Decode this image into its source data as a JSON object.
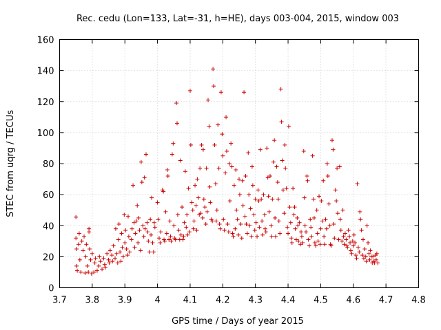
{
  "chart_data": {
    "type": "scatter",
    "title": "Rec. cedu (Lon=133, Lat=-31, h=HE), days 003-004, 2015, window 003",
    "xlabel": "GPS time / Days of year 2015",
    "ylabel": "STEC from uqrg / TECUs",
    "xlim": [
      3.7,
      4.8
    ],
    "ylim": [
      0,
      160
    ],
    "xticks": [
      "3.7",
      "3.8",
      "3.9",
      "4",
      "4.1",
      "4.2",
      "4.3",
      "4.4",
      "4.5",
      "4.6",
      "4.7",
      "4.8"
    ],
    "yticks": [
      "0",
      "20",
      "40",
      "60",
      "80",
      "100",
      "120",
      "140",
      "160"
    ],
    "grid": true,
    "marker": "+",
    "color": "#cc0000",
    "points": [
      [
        3.75,
        45.5
      ],
      [
        3.75,
        32
      ],
      [
        3.752,
        25
      ],
      [
        3.752,
        14
      ],
      [
        3.754,
        11
      ],
      [
        3.758,
        28
      ],
      [
        3.76,
        35
      ],
      [
        3.762,
        18
      ],
      [
        3.765,
        10
      ],
      [
        3.768,
        30
      ],
      [
        3.772,
        24
      ],
      [
        3.775,
        33
      ],
      [
        3.778,
        9.5
      ],
      [
        3.78,
        20
      ],
      [
        3.782,
        28
      ],
      [
        3.785,
        14
      ],
      [
        3.788,
        10
      ],
      [
        3.79,
        36
      ],
      [
        3.79,
        38
      ],
      [
        3.792,
        25
      ],
      [
        3.795,
        18
      ],
      [
        3.798,
        9
      ],
      [
        3.8,
        22
      ],
      [
        3.805,
        10
      ],
      [
        3.808,
        16
      ],
      [
        3.81,
        19
      ],
      [
        3.815,
        11
      ],
      [
        3.82,
        14
      ],
      [
        3.822,
        20
      ],
      [
        3.825,
        17
      ],
      [
        3.83,
        12
      ],
      [
        3.835,
        19
      ],
      [
        3.838,
        15
      ],
      [
        3.84,
        13
      ],
      [
        3.845,
        22
      ],
      [
        3.85,
        18
      ],
      [
        3.852,
        16
      ],
      [
        3.855,
        24
      ],
      [
        3.86,
        21
      ],
      [
        3.862,
        17
      ],
      [
        3.865,
        27
      ],
      [
        3.87,
        19
      ],
      [
        3.872,
        38
      ],
      [
        3.875,
        22
      ],
      [
        3.878,
        16
      ],
      [
        3.88,
        31
      ],
      [
        3.882,
        41
      ],
      [
        3.885,
        23
      ],
      [
        3.888,
        17
      ],
      [
        3.89,
        35
      ],
      [
        3.892,
        26
      ],
      [
        3.895,
        20
      ],
      [
        3.898,
        47
      ],
      [
        3.9,
        29
      ],
      [
        3.902,
        37
      ],
      [
        3.905,
        25
      ],
      [
        3.908,
        21
      ],
      [
        3.91,
        46
      ],
      [
        3.912,
        33
      ],
      [
        3.915,
        23
      ],
      [
        3.92,
        31
      ],
      [
        3.922,
        38
      ],
      [
        3.925,
        66
      ],
      [
        3.928,
        42
      ],
      [
        3.93,
        26
      ],
      [
        3.932,
        35
      ],
      [
        3.935,
        43
      ],
      [
        3.938,
        53
      ],
      [
        3.94,
        29
      ],
      [
        3.942,
        45
      ],
      [
        3.945,
        37
      ],
      [
        3.948,
        24
      ],
      [
        3.95,
        81
      ],
      [
        3.952,
        68
      ],
      [
        3.955,
        40
      ],
      [
        3.958,
        33
      ],
      [
        3.96,
        71
      ],
      [
        3.962,
        38
      ],
      [
        3.965,
        86
      ],
      [
        3.968,
        42
      ],
      [
        3.97,
        36
      ],
      [
        3.972,
        30
      ],
      [
        3.975,
        23
      ],
      [
        3.978,
        44
      ],
      [
        3.98,
        34
      ],
      [
        3.982,
        58
      ],
      [
        3.985,
        29
      ],
      [
        3.988,
        23
      ],
      [
        3.99,
        42
      ],
      [
        3.992,
        39
      ],
      [
        4.0,
        55
      ],
      [
        4.002,
        44
      ],
      [
        4.005,
        32
      ],
      [
        4.008,
        29
      ],
      [
        4.01,
        36
      ],
      [
        4.015,
        63
      ],
      [
        4.018,
        62
      ],
      [
        4.02,
        31
      ],
      [
        4.022,
        30
      ],
      [
        4.025,
        49
      ],
      [
        4.028,
        35
      ],
      [
        4.03,
        76
      ],
      [
        4.032,
        72
      ],
      [
        4.035,
        31
      ],
      [
        4.038,
        43
      ],
      [
        4.04,
        33
      ],
      [
        4.042,
        30
      ],
      [
        4.045,
        86
      ],
      [
        4.048,
        93
      ],
      [
        4.05,
        40
      ],
      [
        4.052,
        32
      ],
      [
        4.055,
        31
      ],
      [
        4.058,
        119
      ],
      [
        4.06,
        106
      ],
      [
        4.062,
        47
      ],
      [
        4.065,
        37
      ],
      [
        4.068,
        31
      ],
      [
        4.07,
        82
      ],
      [
        4.072,
        34
      ],
      [
        4.075,
        52
      ],
      [
        4.078,
        31
      ],
      [
        4.08,
        33
      ],
      [
        4.082,
        42
      ],
      [
        4.085,
        75
      ],
      [
        4.088,
        39
      ],
      [
        4.09,
        47
      ],
      [
        4.092,
        34
      ],
      [
        4.095,
        64
      ],
      [
        4.098,
        36
      ],
      [
        4.1,
        127
      ],
      [
        4.102,
        92
      ],
      [
        4.105,
        55
      ],
      [
        4.108,
        50
      ],
      [
        4.11,
        38
      ],
      [
        4.112,
        43
      ],
      [
        4.115,
        66
      ],
      [
        4.118,
        53
      ],
      [
        4.12,
        37
      ],
      [
        4.122,
        70
      ],
      [
        4.125,
        58
      ],
      [
        4.128,
        47
      ],
      [
        4.13,
        77
      ],
      [
        4.132,
        48
      ],
      [
        4.135,
        92
      ],
      [
        4.138,
        45
      ],
      [
        4.14,
        89
      ],
      [
        4.142,
        57
      ],
      [
        4.145,
        52
      ],
      [
        4.148,
        41
      ],
      [
        4.15,
        77
      ],
      [
        4.152,
        49
      ],
      [
        4.155,
        121
      ],
      [
        4.158,
        104
      ],
      [
        4.16,
        65
      ],
      [
        4.162,
        55
      ],
      [
        4.165,
        44
      ],
      [
        4.168,
        43
      ],
      [
        4.17,
        141
      ],
      [
        4.172,
        130
      ],
      [
        4.175,
        92
      ],
      [
        4.178,
        67
      ],
      [
        4.18,
        43
      ],
      [
        4.182,
        50
      ],
      [
        4.185,
        105
      ],
      [
        4.188,
        77
      ],
      [
        4.19,
        41
      ],
      [
        4.192,
        38
      ],
      [
        4.195,
        126
      ],
      [
        4.198,
        99
      ],
      [
        4.2,
        85
      ],
      [
        4.202,
        44
      ],
      [
        4.205,
        37
      ],
      [
        4.208,
        74
      ],
      [
        4.21,
        110
      ],
      [
        4.212,
        88
      ],
      [
        4.215,
        41
      ],
      [
        4.218,
        36
      ],
      [
        4.22,
        80
      ],
      [
        4.222,
        56
      ],
      [
        4.225,
        93
      ],
      [
        4.228,
        78
      ],
      [
        4.23,
        35
      ],
      [
        4.232,
        33
      ],
      [
        4.235,
        66
      ],
      [
        4.238,
        38
      ],
      [
        4.24,
        76
      ],
      [
        4.242,
        50
      ],
      [
        4.245,
        44
      ],
      [
        4.248,
        34
      ],
      [
        4.25,
        70
      ],
      [
        4.252,
        60
      ],
      [
        4.255,
        41
      ],
      [
        4.258,
        32
      ],
      [
        4.26,
        69
      ],
      [
        4.262,
        53
      ],
      [
        4.265,
        126
      ],
      [
        4.268,
        46
      ],
      [
        4.27,
        72
      ],
      [
        4.272,
        41
      ],
      [
        4.275,
        35
      ],
      [
        4.278,
        87
      ],
      [
        4.28,
        60
      ],
      [
        4.282,
        40
      ],
      [
        4.285,
        51
      ],
      [
        4.288,
        33
      ],
      [
        4.29,
        78
      ],
      [
        4.292,
        66
      ],
      [
        4.295,
        47
      ],
      [
        4.298,
        37
      ],
      [
        4.3,
        57
      ],
      [
        4.302,
        42
      ],
      [
        4.305,
        33
      ],
      [
        4.308,
        63
      ],
      [
        4.31,
        56
      ],
      [
        4.312,
        39
      ],
      [
        4.315,
        89
      ],
      [
        4.318,
        57
      ],
      [
        4.32,
        43
      ],
      [
        4.322,
        34
      ],
      [
        4.325,
        60
      ],
      [
        4.328,
        47
      ],
      [
        4.33,
        38
      ],
      [
        4.332,
        36
      ],
      [
        4.335,
        90
      ],
      [
        4.338,
        71
      ],
      [
        4.34,
        59
      ],
      [
        4.342,
        49
      ],
      [
        4.345,
        72
      ],
      [
        4.348,
        40
      ],
      [
        4.35,
        33
      ],
      [
        4.352,
        57
      ],
      [
        4.355,
        81
      ],
      [
        4.358,
        95
      ],
      [
        4.36,
        45
      ],
      [
        4.362,
        33
      ],
      [
        4.365,
        78
      ],
      [
        4.368,
        68
      ],
      [
        4.37,
        57
      ],
      [
        4.372,
        43
      ],
      [
        4.375,
        35
      ],
      [
        4.378,
        128
      ],
      [
        4.38,
        107
      ],
      [
        4.382,
        82
      ],
      [
        4.385,
        63
      ],
      [
        4.388,
        48
      ],
      [
        4.39,
        92
      ],
      [
        4.392,
        77
      ],
      [
        4.395,
        64
      ],
      [
        4.398,
        39
      ],
      [
        4.4,
        35
      ],
      [
        4.402,
        104
      ],
      [
        4.405,
        52
      ],
      [
        4.408,
        42
      ],
      [
        4.41,
        32
      ],
      [
        4.412,
        29
      ],
      [
        4.415,
        64
      ],
      [
        4.418,
        47
      ],
      [
        4.42,
        52
      ],
      [
        4.422,
        38
      ],
      [
        4.425,
        31
      ],
      [
        4.428,
        45
      ],
      [
        4.43,
        40
      ],
      [
        4.432,
        30
      ],
      [
        4.435,
        42
      ],
      [
        4.438,
        28
      ],
      [
        4.44,
        36
      ],
      [
        4.442,
        33
      ],
      [
        4.445,
        29
      ],
      [
        4.448,
        88
      ],
      [
        4.45,
        58
      ],
      [
        4.452,
        40
      ],
      [
        4.455,
        36
      ],
      [
        4.458,
        72
      ],
      [
        4.46,
        69
      ],
      [
        4.462,
        31
      ],
      [
        4.465,
        27
      ],
      [
        4.468,
        44
      ],
      [
        4.47,
        39
      ],
      [
        4.472,
        33
      ],
      [
        4.475,
        85
      ],
      [
        4.478,
        57
      ],
      [
        4.48,
        45
      ],
      [
        4.482,
        29
      ],
      [
        4.485,
        27
      ],
      [
        4.488,
        50
      ],
      [
        4.49,
        35
      ],
      [
        4.492,
        30
      ],
      [
        4.495,
        59
      ],
      [
        4.498,
        28
      ],
      [
        4.5,
        38
      ],
      [
        4.502,
        56
      ],
      [
        4.505,
        43
      ],
      [
        4.508,
        69
      ],
      [
        4.51,
        33
      ],
      [
        4.512,
        28
      ],
      [
        4.515,
        44
      ],
      [
        4.518,
        38
      ],
      [
        4.52,
        80
      ],
      [
        4.522,
        72
      ],
      [
        4.525,
        54
      ],
      [
        4.528,
        40
      ],
      [
        4.53,
        28
      ],
      [
        4.532,
        27
      ],
      [
        4.535,
        95
      ],
      [
        4.538,
        89
      ],
      [
        4.54,
        41
      ],
      [
        4.542,
        32
      ],
      [
        4.545,
        63
      ],
      [
        4.548,
        56
      ],
      [
        4.55,
        77
      ],
      [
        4.552,
        48
      ],
      [
        4.555,
        31
      ],
      [
        4.558,
        78
      ],
      [
        4.56,
        44
      ],
      [
        4.562,
        37
      ],
      [
        4.565,
        30
      ],
      [
        4.568,
        50
      ],
      [
        4.57,
        33
      ],
      [
        4.572,
        28
      ],
      [
        4.575,
        35
      ],
      [
        4.578,
        31
      ],
      [
        4.58,
        27
      ],
      [
        4.582,
        26
      ],
      [
        4.585,
        37
      ],
      [
        4.588,
        33
      ],
      [
        4.59,
        29
      ],
      [
        4.592,
        24
      ],
      [
        4.595,
        22
      ],
      [
        4.598,
        30
      ],
      [
        4.6,
        27
      ],
      [
        4.602,
        34
      ],
      [
        4.605,
        29
      ],
      [
        4.608,
        21
      ],
      [
        4.61,
        19
      ],
      [
        4.612,
        67
      ],
      [
        4.615,
        26
      ],
      [
        4.618,
        23
      ],
      [
        4.62,
        49
      ],
      [
        4.622,
        44
      ],
      [
        4.625,
        37
      ],
      [
        4.628,
        21
      ],
      [
        4.63,
        31
      ],
      [
        4.632,
        19
      ],
      [
        4.635,
        25
      ],
      [
        4.638,
        20
      ],
      [
        4.64,
        17
      ],
      [
        4.642,
        40
      ],
      [
        4.645,
        29
      ],
      [
        4.648,
        22
      ],
      [
        4.65,
        18
      ],
      [
        4.652,
        24
      ],
      [
        4.655,
        20
      ],
      [
        4.658,
        16
      ],
      [
        4.66,
        20
      ],
      [
        4.662,
        17
      ],
      [
        4.665,
        16
      ],
      [
        4.668,
        21
      ],
      [
        4.67,
        18
      ],
      [
        4.672,
        22
      ],
      [
        4.675,
        16
      ]
    ]
  }
}
